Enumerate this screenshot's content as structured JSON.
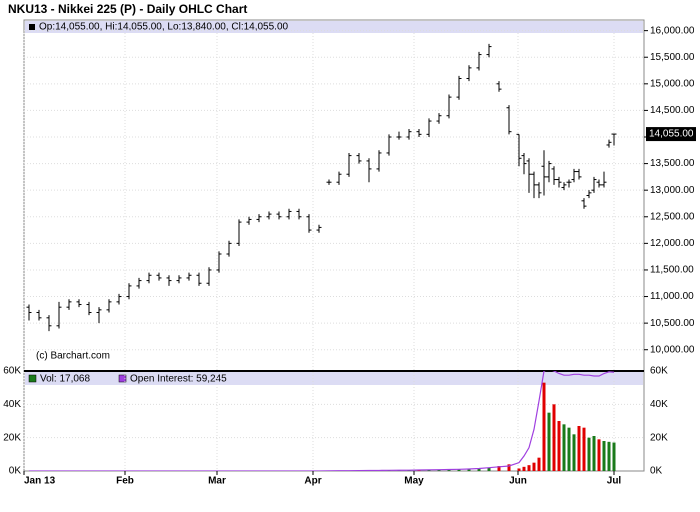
{
  "chart_data": {
    "type": "ohlc",
    "title": "NKU13 - Nikkei 225 (P) - Daily OHLC Chart",
    "info": "Op:14,055.00, Hi:14,055.00, Lo:13,840.00, Cl:14,055.00",
    "watermark": "(c) Barchart.com",
    "grid": true,
    "xlim": [
      0,
      124
    ],
    "xticks": [
      {
        "value": 0,
        "label": "Jan 13"
      },
      {
        "value": 20.2,
        "label": "Feb"
      },
      {
        "value": 38.6,
        "label": "Mar"
      },
      {
        "value": 57.8,
        "label": "Apr"
      },
      {
        "value": 78,
        "label": "May"
      },
      {
        "value": 98.8,
        "label": "Jun"
      },
      {
        "value": 118,
        "label": "Jul"
      }
    ],
    "x": [
      1,
      3,
      5,
      7,
      9,
      11,
      13,
      15,
      17,
      19,
      21,
      23,
      25,
      27,
      29,
      31,
      33,
      35,
      37,
      39,
      41,
      43,
      45,
      47,
      49,
      51,
      53,
      55,
      57,
      59,
      61,
      63,
      65,
      67,
      69,
      71,
      73,
      75,
      77,
      79,
      81,
      83,
      85,
      87,
      89,
      91,
      93,
      95,
      97,
      99,
      100,
      101,
      102,
      103,
      104,
      105,
      106,
      107,
      108,
      109,
      110,
      111,
      112,
      113,
      114,
      115,
      116,
      117,
      118
    ],
    "price": {
      "color": "#000000",
      "ylim": [
        9600,
        16200
      ],
      "yticks": [
        {
          "value": 10000,
          "label": "10,000.00"
        },
        {
          "value": 10500,
          "label": "10,500.00"
        },
        {
          "value": 11000,
          "label": "11,000.00"
        },
        {
          "value": 11500,
          "label": "11,500.00"
        },
        {
          "value": 12000,
          "label": "12,000.00"
        },
        {
          "value": 12500,
          "label": "12,500.00"
        },
        {
          "value": 13000,
          "label": "13,000.00"
        },
        {
          "value": 13500,
          "label": "13,500.00"
        },
        {
          "value": 14000,
          "label": "14,000.00"
        },
        {
          "value": 14500,
          "label": "14,500.00"
        },
        {
          "value": 15000,
          "label": "15,000.00"
        },
        {
          "value": 15500,
          "label": "15,500.00"
        },
        {
          "value": 16000,
          "label": "16,000.00"
        }
      ],
      "last": {
        "value": 14055,
        "label": "14,055.00"
      },
      "open": [
        10800,
        10700,
        10600,
        10450,
        10800,
        10900,
        10850,
        10700,
        10750,
        10900,
        11000,
        11200,
        11300,
        11400,
        11350,
        11300,
        11350,
        11400,
        11250,
        11500,
        11800,
        12000,
        12400,
        12450,
        12500,
        12550,
        12500,
        12600,
        12500,
        12250,
        13150,
        13150,
        13300,
        13650,
        13550,
        13400,
        13700,
        14000,
        14000,
        14100,
        14050,
        14300,
        14400,
        14750,
        15100,
        15300,
        15550,
        15000,
        14550,
        14050,
        13650,
        13550,
        13300,
        13100,
        13450,
        13250,
        13400,
        13200,
        13050,
        13150,
        13200,
        13350,
        12800,
        12900,
        13000,
        13150,
        13100,
        13850,
        14055
      ],
      "high": [
        10850,
        10750,
        10650,
        10900,
        10950,
        10950,
        10900,
        10800,
        10950,
        11050,
        11250,
        11350,
        11450,
        11450,
        11400,
        11400,
        11450,
        11450,
        11550,
        11850,
        12050,
        12450,
        12500,
        12550,
        12600,
        12600,
        12650,
        12650,
        12550,
        12350,
        13200,
        13350,
        13700,
        13700,
        13600,
        13750,
        14050,
        14100,
        14150,
        14150,
        14350,
        14450,
        14800,
        15150,
        15350,
        15600,
        15750,
        15050,
        14600,
        14050,
        13700,
        13600,
        13350,
        13150,
        13750,
        13550,
        13450,
        13250,
        13150,
        13200,
        13400,
        13400,
        12850,
        13000,
        13250,
        13200,
        13350,
        13950,
        14055
      ],
      "low": [
        10550,
        10550,
        10350,
        10400,
        10750,
        10800,
        10650,
        10500,
        10700,
        10850,
        10950,
        11150,
        11250,
        11300,
        11200,
        11250,
        11300,
        11200,
        11200,
        11450,
        11750,
        11950,
        12350,
        12400,
        12450,
        12450,
        12450,
        12450,
        12200,
        12200,
        13100,
        13100,
        13250,
        13500,
        13150,
        13350,
        13650,
        13950,
        13950,
        14000,
        14000,
        14250,
        14350,
        14700,
        15050,
        15250,
        15500,
        14850,
        14050,
        13450,
        13300,
        12950,
        12850,
        12850,
        12900,
        13150,
        13100,
        13050,
        13000,
        13050,
        13150,
        13200,
        12650,
        12850,
        12950,
        13050,
        13050,
        13800,
        13840
      ],
      "close": [
        10700,
        10600,
        10450,
        10800,
        10900,
        10850,
        10700,
        10750,
        10900,
        11000,
        11200,
        11300,
        11400,
        11350,
        11300,
        11350,
        11400,
        11250,
        11500,
        11800,
        12000,
        12400,
        12450,
        12500,
        12550,
        12500,
        12600,
        12500,
        12250,
        12300,
        13150,
        13300,
        13650,
        13550,
        13400,
        13700,
        14000,
        14000,
        14100,
        14050,
        14300,
        14400,
        14750,
        15100,
        15300,
        15550,
        15700,
        14900,
        14100,
        13600,
        13500,
        13300,
        13100,
        12950,
        13250,
        13500,
        13200,
        13150,
        13100,
        13150,
        13350,
        13250,
        12700,
        12950,
        13200,
        13100,
        13150,
        13900,
        14055
      ]
    },
    "volume": {
      "legend": "Vol: 17,068",
      "legend_color": "#1a7a1a",
      "up_color": "#1a7a1a",
      "down_color": "#e00000",
      "ylim": [
        0,
        60000
      ],
      "yticks": [
        {
          "value": 0,
          "label": "0K"
        },
        {
          "value": 20000,
          "label": "20K"
        },
        {
          "value": 40000,
          "label": "40K"
        },
        {
          "value": 60000,
          "label": "60K"
        }
      ],
      "values": [
        0,
        0,
        0,
        0,
        0,
        0,
        0,
        0,
        0,
        0,
        0,
        0,
        0,
        0,
        0,
        0,
        0,
        0,
        0,
        0,
        0,
        0,
        0,
        0,
        0,
        0,
        0,
        0,
        0,
        0,
        200,
        300,
        300,
        400,
        500,
        400,
        600,
        500,
        400,
        600,
        700,
        800,
        900,
        1000,
        1200,
        1500,
        2000,
        3000,
        4000,
        1500,
        2500,
        3500,
        5000,
        8000,
        53000,
        35000,
        40000,
        30000,
        28000,
        26000,
        22000,
        27000,
        26000,
        20000,
        21000,
        19000,
        18000,
        17500,
        17068
      ]
    },
    "open_interest": {
      "legend": "Open Interest: 59,245",
      "color": "#a040e0",
      "values": [
        0,
        0,
        0,
        0,
        0,
        0,
        0,
        0,
        0,
        0,
        0,
        0,
        0,
        0,
        0,
        0,
        0,
        0,
        0,
        0,
        0,
        0,
        0,
        0,
        0,
        0,
        0,
        0,
        0,
        0,
        100,
        150,
        200,
        250,
        300,
        350,
        400,
        450,
        500,
        600,
        700,
        800,
        900,
        1000,
        1200,
        1500,
        2000,
        2500,
        3000,
        5000,
        9000,
        14000,
        25000,
        42000,
        60000,
        61000,
        60000,
        58500,
        57500,
        57500,
        58000,
        58000,
        57500,
        57500,
        57000,
        57000,
        58500,
        59500,
        59245
      ]
    }
  }
}
